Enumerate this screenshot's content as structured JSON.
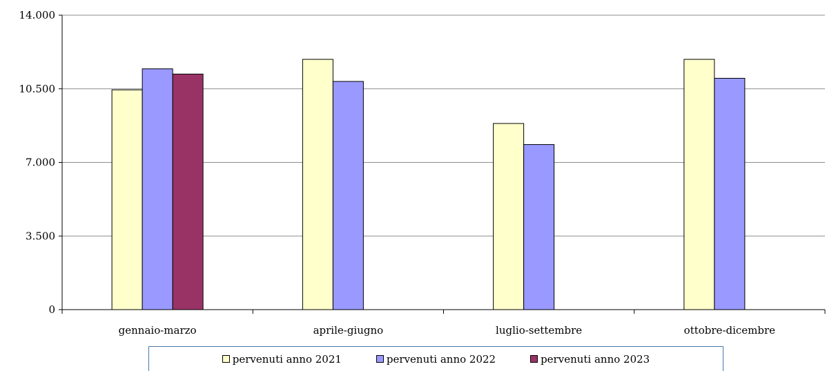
{
  "chart_data": {
    "type": "bar",
    "categories": [
      "gennaio-marzo",
      "aprile-giugno",
      "luglio-settembre",
      "ottobre-dicembre"
    ],
    "series": [
      {
        "name": "pervenuti anno 2021",
        "color": "#ffffcc",
        "values": [
          10450,
          11900,
          8850,
          11900
        ]
      },
      {
        "name": "pervenuti anno 2022",
        "color": "#9999ff",
        "values": [
          11450,
          10850,
          7850,
          11000
        ]
      },
      {
        "name": "pervenuti anno 2023",
        "color": "#993366",
        "values": [
          11200,
          null,
          null,
          null
        ]
      }
    ],
    "ylim": [
      0,
      14000
    ],
    "yticks": [
      0,
      3500,
      7000,
      10500,
      14000
    ],
    "ytick_labels": [
      "0",
      "3.500",
      "7.000",
      "10.500",
      "14.000"
    ],
    "grid": true,
    "legend_position": "bottom"
  }
}
